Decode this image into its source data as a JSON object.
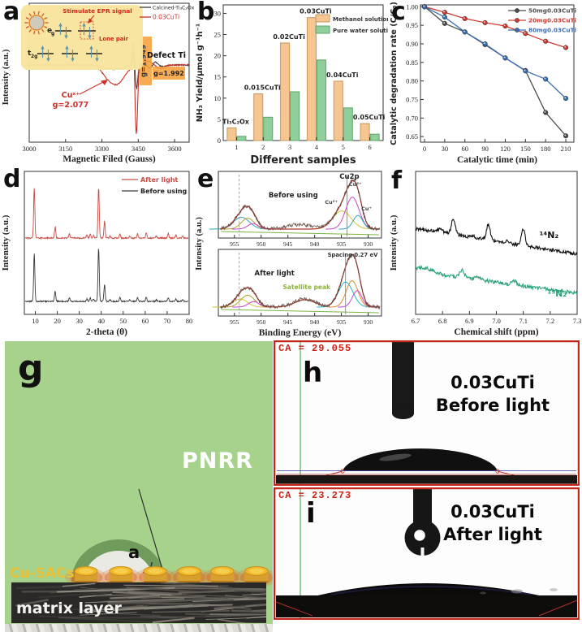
{
  "panels": {
    "a": "a",
    "b": "b",
    "c": "c",
    "d": "d",
    "e": "e",
    "f": "f",
    "g": "g",
    "h": "h",
    "i": "i"
  },
  "schematic": {
    "panel_label": "g",
    "process_label": "PNRR",
    "catalyst_label": "Cu-SACs",
    "matrix_label": "matrix layer",
    "angle_label": "a",
    "bg_color": "#a7d28c"
  },
  "contact_angle": [
    {
      "panel_label": "h",
      "ca_reading": "CA = 29.055",
      "sample": "0.03CuTi",
      "condition": "Before light"
    },
    {
      "panel_label": "i",
      "ca_reading": "CA = 23.273",
      "sample": "0.03CuTi",
      "condition": "After light"
    }
  ],
  "chart_data": [
    {
      "id": "a",
      "type": "line",
      "kind": "EPR spectra",
      "xlabel": "Magnetic Filed (Gauss)",
      "ylabel": "Intensity (a.u.)",
      "xlim": [
        3000,
        3660
      ],
      "xticks": [
        3000,
        3150,
        3300,
        3450,
        3600
      ],
      "legend": [
        {
          "name": "Calcined-Ti₃C₂Ox",
          "color": "#3a3a3a"
        },
        {
          "name": "0.03CuTi",
          "color": "#cf2f26"
        }
      ],
      "annotations": {
        "g_box1": "g=1.949",
        "defect": "Defect Ti",
        "g_box2": "g=1.992",
        "cu_species": "Cuˣ⁺",
        "cu_g": "g=2.077",
        "box_color": "#f6a13c"
      },
      "inset": {
        "title": "Stimulate EPR signal",
        "lone_pair": "Lone pair",
        "eg": "eg",
        "t2g": "t2g",
        "bg": "#f7e49e"
      },
      "features": {
        "broad_dip_center_gauss": 3360,
        "sharp_signal_center_gauss": 3443
      }
    },
    {
      "id": "b",
      "type": "bar",
      "categories": [
        1,
        2,
        3,
        4,
        5,
        6
      ],
      "bar_labels": [
        "Ti₃C₂Ox",
        "0.015CuTi",
        "0.02CuTi",
        "0.03CuTi",
        "0.04CuTi",
        "0.05CuTi"
      ],
      "series": [
        {
          "name": "Methanol solution",
          "color": "#f6c692",
          "edge": "#c8955c",
          "values": [
            3,
            11,
            23,
            29,
            14,
            4
          ]
        },
        {
          "name": "Pure water solution",
          "color": "#90cf9b",
          "edge": "#5da468",
          "values": [
            1,
            5.5,
            11.5,
            19,
            7.7,
            1.5
          ]
        }
      ],
      "xlabel": "Different samples",
      "ylabel": "NH₃ Yield/μmol g⁻¹h⁻¹",
      "ylim": [
        0,
        32
      ],
      "yticks": [
        0,
        5,
        10,
        15,
        20,
        25,
        30
      ]
    },
    {
      "id": "c",
      "type": "line",
      "x": [
        0,
        30,
        60,
        90,
        120,
        150,
        180,
        210
      ],
      "series": [
        {
          "name": "50mg0.03CuTi",
          "color": "#4d4d4d",
          "values": [
            1.0,
            0.955,
            0.932,
            0.898,
            0.862,
            0.828,
            0.715,
            0.652
          ]
        },
        {
          "name": "20mg0.03CuTi",
          "color": "#d03a30",
          "values": [
            1.0,
            0.985,
            0.968,
            0.957,
            0.948,
            0.928,
            0.907,
            0.89
          ]
        },
        {
          "name": "80mg0.03CuTi",
          "color": "#3b6fb5",
          "values": [
            1.0,
            0.972,
            0.932,
            0.9,
            0.862,
            0.827,
            0.805,
            0.753
          ]
        }
      ],
      "xlabel": "Catalytic time (min)",
      "ylabel": "Catalytic degradation rate (C/C₀)",
      "xticks": [
        0,
        30,
        60,
        90,
        120,
        150,
        180,
        210
      ],
      "ylim": [
        0.635,
        1.005
      ],
      "yticks": [
        0.65,
        0.7,
        0.75,
        0.8,
        0.85,
        0.9,
        0.95,
        1.0
      ]
    },
    {
      "id": "d",
      "type": "line",
      "kind": "XRD patterns",
      "legend": [
        {
          "name": "After light",
          "color": "#c84b44"
        },
        {
          "name": "Before using",
          "color": "#3a3a3a"
        }
      ],
      "xlabel": "2-theta (θ)",
      "ylabel": "Intensity (a.u.)",
      "xlim": [
        5,
        80
      ],
      "xticks": [
        10,
        20,
        30,
        40,
        50,
        60,
        70,
        80
      ],
      "peaks": {
        "positions": [
          9.5,
          19,
          25.5,
          33.5,
          35,
          36.5,
          38.8,
          41.5,
          44,
          48.5,
          53,
          56.5,
          60.5,
          65,
          70.5,
          74,
          77
        ],
        "after_light": [
          1.0,
          0.22,
          0.08,
          0.06,
          0.08,
          0.05,
          1.0,
          0.33,
          0.04,
          0.08,
          0.04,
          0.08,
          0.1,
          0.04,
          0.1,
          0.06,
          0.04
        ],
        "before_using": [
          0.95,
          0.2,
          0.07,
          0.05,
          0.07,
          0.05,
          1.05,
          0.33,
          0.03,
          0.07,
          0.03,
          0.07,
          0.08,
          0.03,
          0.07,
          0.05,
          0.03
        ]
      }
    },
    {
      "id": "e",
      "type": "line",
      "kind": "XPS Cu2p",
      "title": "Cu2p",
      "xlabel": "Binding Energy (eV)",
      "ylabel": "Intensity (a.u.)",
      "xlim": [
        958,
        927.5
      ],
      "xticks": [
        955,
        950,
        945,
        940,
        935,
        930
      ],
      "subpanels": [
        {
          "label": "Before using",
          "peak_labels": [
            {
              "text": "Cu²⁺",
              "ev": 936.9
            },
            {
              "text": "Cu²⁺",
              "ev": 932.4
            },
            {
              "text": "Cu⁺",
              "ev": 930.3
            }
          ],
          "components": [
            {
              "center_ev": 934.9,
              "amp": 0.4,
              "width": 1.7,
              "color": "#d4c23a"
            },
            {
              "center_ev": 932.95,
              "amp": 0.7,
              "width": 1.25,
              "color": "#cc44cc"
            },
            {
              "center_ev": 931.9,
              "amp": 0.3,
              "width": 0.9,
              "color": "#2fa8bb"
            },
            {
              "center_ev": 953.7,
              "amp": 0.26,
              "width": 1.5,
              "color": "#2fa8bb"
            },
            {
              "center_ev": 952.5,
              "amp": 0.24,
              "width": 1.2,
              "color": "#b0a030"
            },
            {
              "center_ev": 951.5,
              "amp": 0.12,
              "width": 1.0,
              "color": "#cc44cc"
            }
          ],
          "marker_line_ev": 933.95
        },
        {
          "label": "After light",
          "satellite_label": "Satellite peak",
          "spacing_label": "Spacing 0.27 eV",
          "components": [
            {
              "center_ev": 934.2,
              "amp": 0.55,
              "width": 1.35,
              "color": "#22b6c9"
            },
            {
              "center_ev": 933.0,
              "amp": 0.58,
              "width": 1.1,
              "color": "#e08a2a"
            },
            {
              "center_ev": 932.05,
              "amp": 0.36,
              "width": 0.9,
              "color": "#cc44cc"
            },
            {
              "center_ev": 953.9,
              "amp": 0.18,
              "width": 1.3,
              "color": "#d4c23a"
            },
            {
              "center_ev": 952.5,
              "amp": 0.26,
              "width": 1.3,
              "color": "#b0a030"
            },
            {
              "center_ev": 951.4,
              "amp": 0.12,
              "width": 1.0,
              "color": "#cc44cc"
            }
          ],
          "marker_line_ev": 934.22
        }
      ],
      "dashed_guide_ev": 954.1
    },
    {
      "id": "f",
      "type": "line",
      "kind": "1H NMR",
      "xlabel": "Chemical shift (ppm)",
      "ylabel": "Intensity (a.u.)",
      "xlim": [
        6.7,
        7.3
      ],
      "xticks": [
        6.7,
        6.8,
        6.9,
        7.0,
        7.1,
        7.2,
        7.3
      ],
      "series": [
        {
          "name": "¹⁴N₂",
          "color": "#111111",
          "peak_ppm": [
            6.84,
            6.97,
            7.1
          ]
        },
        {
          "name": "¹⁵N₂",
          "color": "#2aa07c",
          "peak_ppm": [
            6.872,
            7.065
          ]
        }
      ]
    }
  ]
}
